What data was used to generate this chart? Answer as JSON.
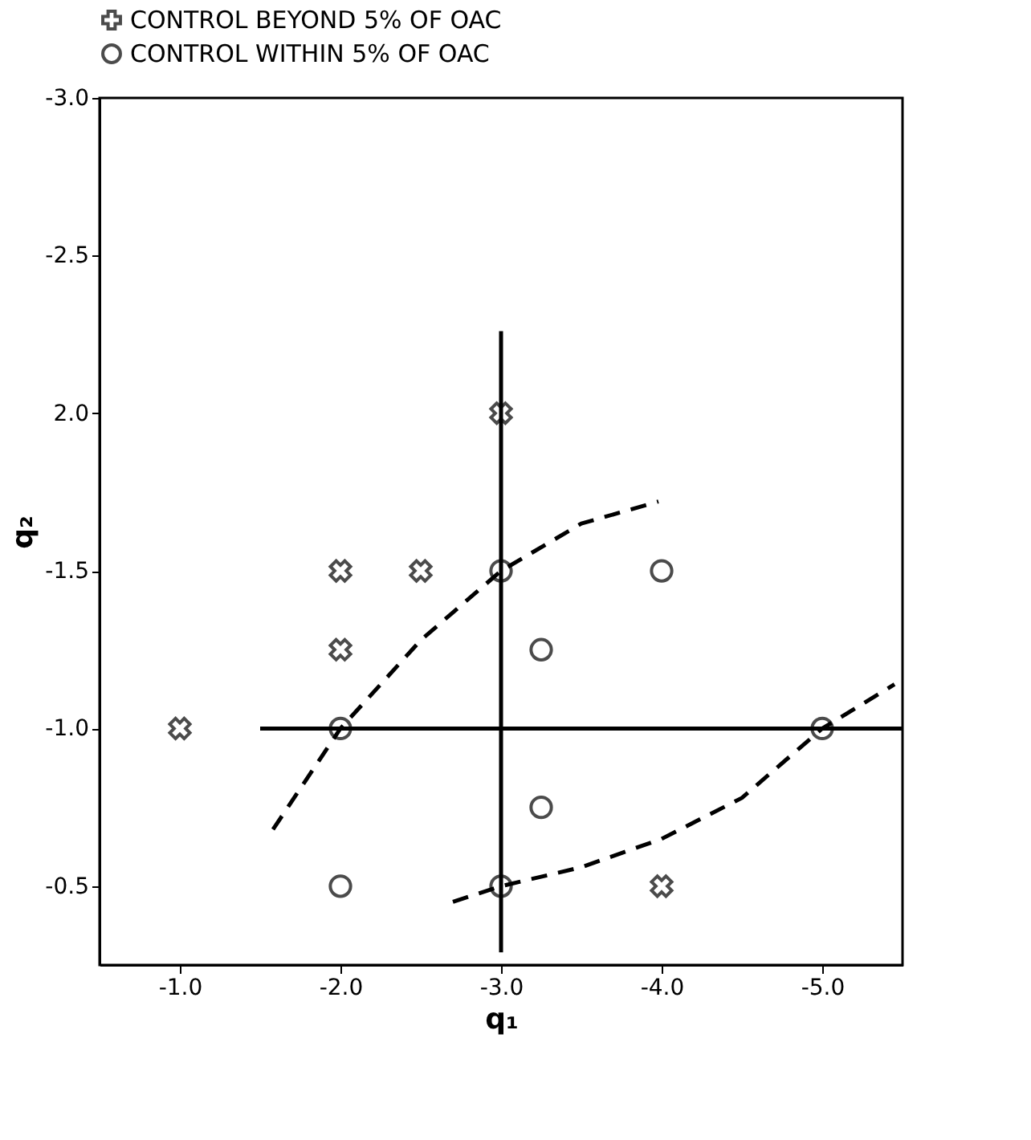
{
  "chart_data": {
    "type": "scatter",
    "xlabel": "q₁",
    "ylabel": "q₂",
    "xlim": [
      -0.5,
      -5.5
    ],
    "ylim": [
      -0.25,
      -3.0
    ],
    "xticks": [
      {
        "value": -1.0,
        "label": "-1.0"
      },
      {
        "value": -2.0,
        "label": "-2.0"
      },
      {
        "value": -3.0,
        "label": "-3.0"
      },
      {
        "value": -4.0,
        "label": "-4.0"
      },
      {
        "value": -5.0,
        "label": "-5.0"
      }
    ],
    "yticks": [
      {
        "value": -0.5,
        "label": "-0.5"
      },
      {
        "value": -1.0,
        "label": "-1.0"
      },
      {
        "value": -1.5,
        "label": "-1.5"
      },
      {
        "value": -2.0,
        "label": "2.0"
      },
      {
        "value": -2.5,
        "label": "-2.5"
      },
      {
        "value": -3.0,
        "label": "-3.0"
      }
    ],
    "grid": false,
    "legend": "top",
    "series": [
      {
        "name": "CONTROL BEYOND 5% OF OAC",
        "marker": "cross",
        "color": "#000000",
        "x": [
          -1.0,
          -2.0,
          -2.5,
          -2.0,
          -3.0,
          -4.0
        ],
        "values": [
          -1.0,
          -1.5,
          -1.5,
          -1.25,
          -2.0,
          -0.5
        ]
      },
      {
        "name": "CONTROL WITHIN 5% OF OAC",
        "marker": "circle",
        "color": "#000000",
        "x": [
          -2.0,
          -3.0,
          -3.25,
          -4.0,
          -5.0,
          -3.25,
          -2.0,
          -3.0
        ],
        "values": [
          -1.0,
          -1.5,
          -1.25,
          -1.5,
          -1.0,
          -0.75,
          -0.5,
          -0.5
        ]
      },
      {
        "type": "line",
        "line_style": "solid",
        "color": "#000000",
        "x": [
          -3.0,
          -3.0
        ],
        "values": [
          -0.29,
          -2.26
        ]
      },
      {
        "type": "line",
        "line_style": "solid",
        "color": "#000000",
        "x": [
          -1.5,
          -5.5
        ],
        "values": [
          -1.0,
          -1.0
        ]
      },
      {
        "type": "line",
        "line_style": "dashed",
        "color": "#000000",
        "x": [
          -1.58,
          -2.0,
          -2.5,
          -3.0,
          -3.5,
          -3.98
        ],
        "values": [
          -0.68,
          -1.0,
          -1.28,
          -1.5,
          -1.65,
          -1.72
        ]
      },
      {
        "type": "line",
        "line_style": "dashed",
        "color": "#000000",
        "x": [
          -2.7,
          -3.0,
          -3.5,
          -4.0,
          -4.5,
          -5.0,
          -5.45
        ],
        "values": [
          -0.45,
          -0.5,
          -0.56,
          -0.65,
          -0.78,
          -1.0,
          -1.14
        ]
      }
    ]
  }
}
